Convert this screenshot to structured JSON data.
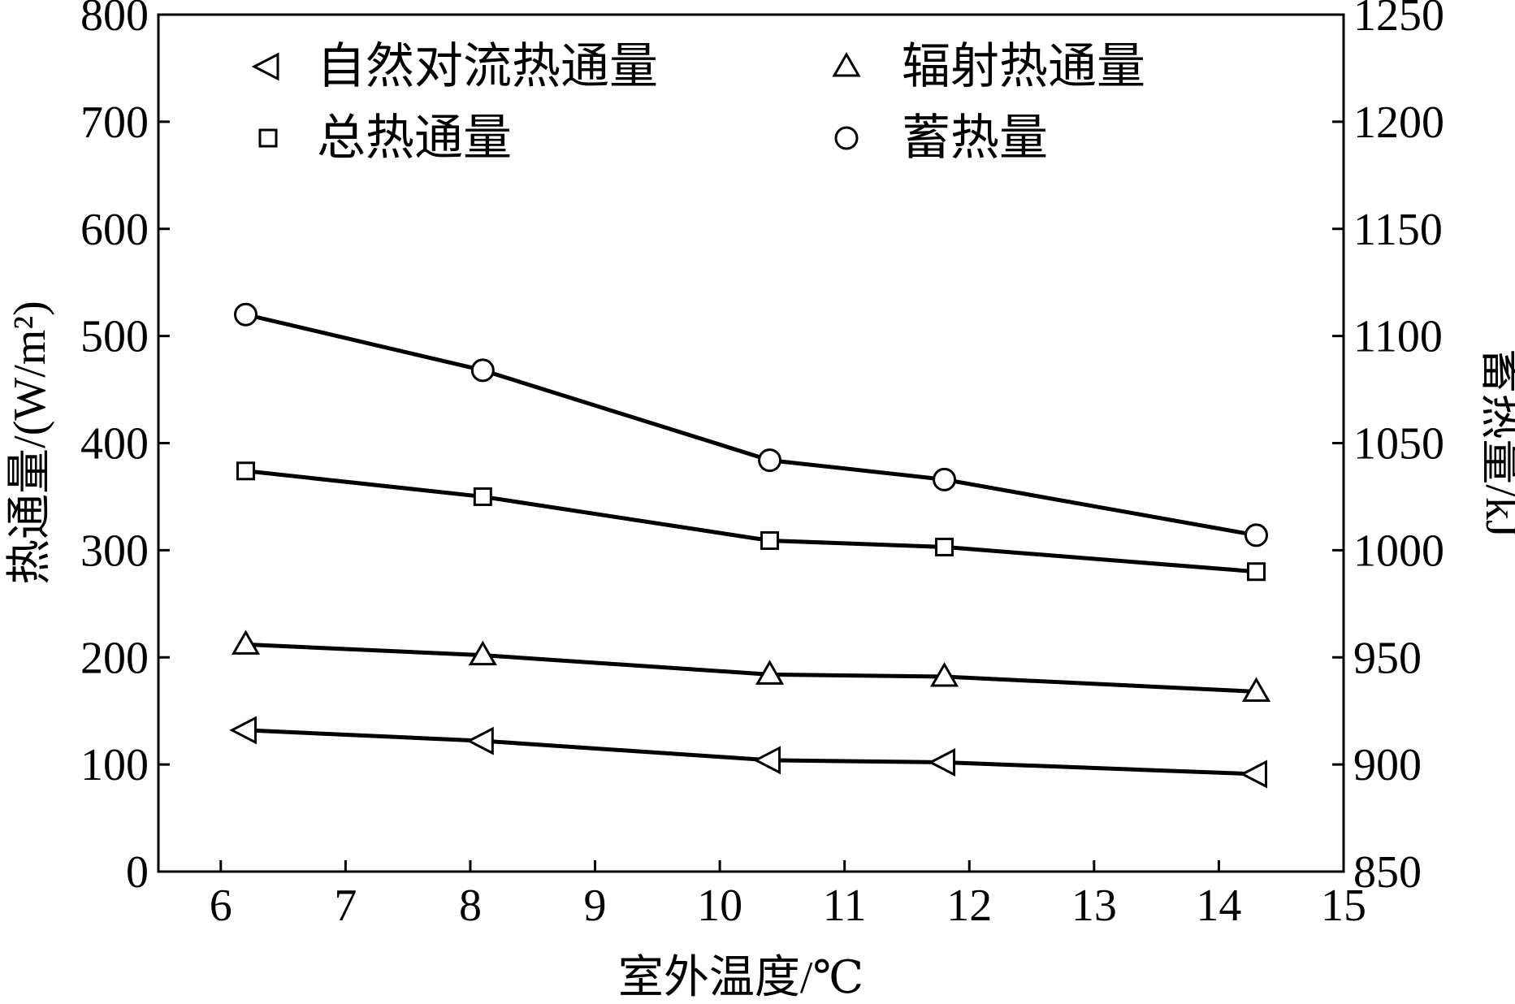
{
  "chart_data": {
    "type": "line",
    "xlabel": "室外温度/℃",
    "ylabel_left": "热通量/(W/m²)",
    "ylabel_right": "蓄热量/kJ",
    "xlim": [
      5.5,
      15
    ],
    "ylim_left": [
      0,
      800
    ],
    "ylim_right": [
      850,
      1250
    ],
    "xticks": [
      6,
      7,
      8,
      9,
      10,
      11,
      12,
      13,
      14,
      15
    ],
    "yticks_left": [
      0,
      100,
      200,
      300,
      400,
      500,
      600,
      700,
      800
    ],
    "yticks_right": [
      850,
      900,
      950,
      1000,
      1050,
      1100,
      1150,
      1200,
      1250
    ],
    "x": [
      6.2,
      8.1,
      10.4,
      11.8,
      14.3
    ],
    "grid": false,
    "legend_position": "top",
    "series": [
      {
        "name": "自然对流热通量",
        "axis": "left",
        "marker": "triangle-left",
        "values": [
          132,
          122,
          104,
          102,
          91
        ]
      },
      {
        "name": "辐射热通量",
        "axis": "left",
        "marker": "triangle-up",
        "values": [
          212,
          202,
          184,
          182,
          168
        ]
      },
      {
        "name": "总热通量",
        "axis": "left",
        "marker": "square",
        "values": [
          374,
          350,
          309,
          303,
          280
        ]
      },
      {
        "name": "蓄热量",
        "axis": "right",
        "marker": "circle",
        "values": [
          1110,
          1084,
          1042,
          1033,
          1007
        ]
      }
    ]
  }
}
